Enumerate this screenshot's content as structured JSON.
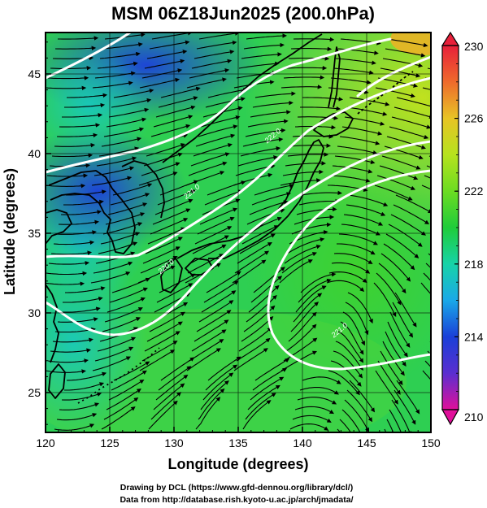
{
  "title": "MSM 06Z18Jun2025 (200.0hPa)",
  "x_axis": {
    "label": "Longitude (degrees)",
    "range": [
      120,
      150
    ],
    "ticks": [
      120,
      125,
      130,
      135,
      140,
      145,
      150
    ]
  },
  "y_axis": {
    "label": "Latitude  (degrees)",
    "range": [
      22.5,
      47.6
    ],
    "ticks": [
      25,
      30,
      35,
      40,
      45
    ]
  },
  "colorbar": {
    "range": [
      210,
      230
    ],
    "tick_labels": [
      "230",
      "226",
      "222",
      "218",
      "214",
      "210"
    ],
    "colors": [
      "#e0109a",
      "#5a2fd0",
      "#1a3fd8",
      "#1aa8e8",
      "#17d3a8",
      "#1fcc3a",
      "#6cdc22",
      "#b6e21e",
      "#e8c425",
      "#ee6a2c",
      "#e8203a"
    ]
  },
  "credits": {
    "line1": "Drawing by DCL (https://www.gfd-dennou.org/library/dcl/)",
    "line2": "Data from http://database.rish.kyoto-u.ac.jp/arch/jmadata/"
  },
  "field": "temperature (K) with wind streamlines",
  "contour_labels": [
    {
      "text": "222.0",
      "lon": 137.8,
      "lat": 41.0
    },
    {
      "text": "221.0",
      "lon": 131.5,
      "lat": 37.5
    },
    {
      "text": "220.0",
      "lon": 129.5,
      "lat": 32.8
    },
    {
      "text": "221.0",
      "lon": 143.0,
      "lat": 28.8
    }
  ]
}
